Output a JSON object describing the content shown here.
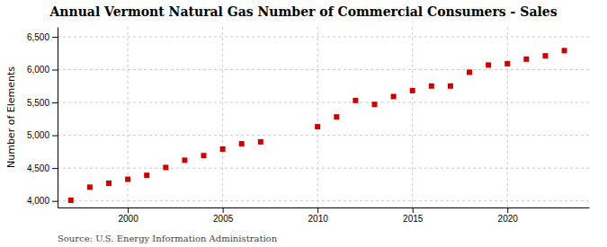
{
  "chart_data": {
    "type": "scatter",
    "title": "Annual Vermont Natural Gas Number of Commercial Consumers - Sales",
    "y_label": "Number of Elements",
    "source": "Source: U.S. Energy Information Administration",
    "x": [
      1997,
      1998,
      1999,
      2000,
      2001,
      2002,
      2003,
      2004,
      2005,
      2006,
      2007,
      2010,
      2011,
      2012,
      2013,
      2014,
      2015,
      2016,
      2017,
      2018,
      2019,
      2020,
      2021,
      2022,
      2023
    ],
    "values": [
      4010,
      4210,
      4270,
      4330,
      4390,
      4510,
      4620,
      4690,
      4790,
      4870,
      4900,
      5130,
      5280,
      5530,
      5470,
      5590,
      5680,
      5750,
      5750,
      5960,
      6070,
      6090,
      6160,
      6210,
      6290
    ],
    "color": "#cc0000",
    "marker": "square",
    "xlim": [
      1996.3,
      2024.3
    ],
    "xticks": [
      2000,
      2005,
      2010,
      2015,
      2020
    ],
    "ylim": [
      3900,
      6650
    ],
    "yticks": [
      {
        "value": 4000,
        "label": "4,000"
      },
      {
        "value": 4500,
        "label": "4,500"
      },
      {
        "value": 5000,
        "label": "5,000"
      },
      {
        "value": 5500,
        "label": "5,500"
      },
      {
        "value": 6000,
        "label": "6,000"
      },
      {
        "value": 6500,
        "label": "6,500"
      }
    ],
    "grid": true
  }
}
